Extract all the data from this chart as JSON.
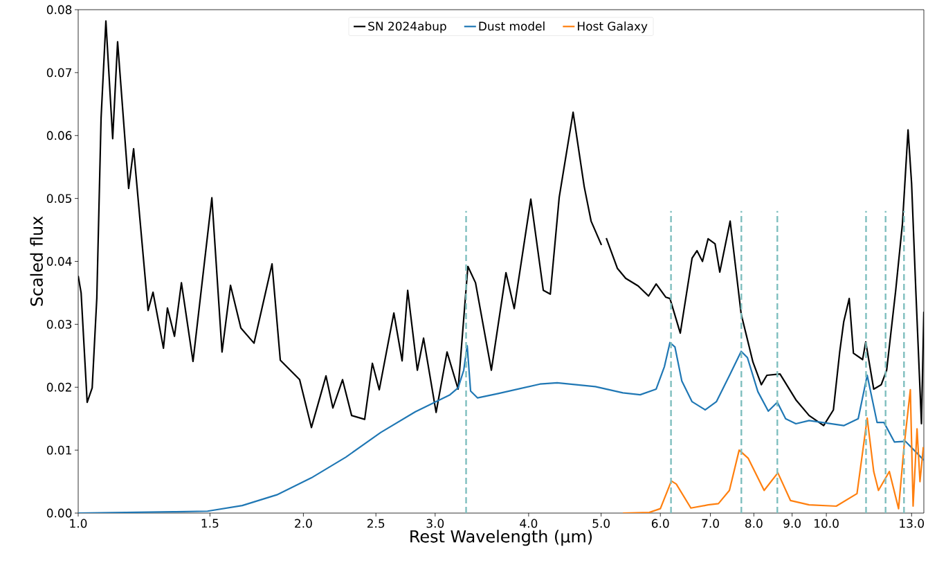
{
  "chart_data": {
    "type": "line",
    "xlabel": "Rest Wavelength (μm)",
    "ylabel": "Scaled flux",
    "log": "x",
    "legend": "top",
    "xlim": [
      1.0,
      13.5
    ],
    "ylim": [
      0.0,
      0.08
    ],
    "xticks": [
      {
        "value": 1.0,
        "label": "1.0"
      },
      {
        "value": 1.5,
        "label": "1.5"
      },
      {
        "value": 2.0,
        "label": "2.0"
      },
      {
        "value": 2.5,
        "label": "2.5"
      },
      {
        "value": 3.0,
        "label": "3.0"
      },
      {
        "value": 4.0,
        "label": "4.0"
      },
      {
        "value": 5.0,
        "label": "5.0"
      },
      {
        "value": 6.0,
        "label": "6.0"
      },
      {
        "value": 7.0,
        "label": "7.0"
      },
      {
        "value": 8.0,
        "label": "8.0"
      },
      {
        "value": 9.0,
        "label": "9.0"
      },
      {
        "value": 10.0,
        "label": "10.0"
      },
      {
        "value": 13.0,
        "label": "13.0"
      }
    ],
    "yticks": [
      {
        "value": 0.0,
        "label": "0.00"
      },
      {
        "value": 0.01,
        "label": "0.01"
      },
      {
        "value": 0.02,
        "label": "0.02"
      },
      {
        "value": 0.03,
        "label": "0.03"
      },
      {
        "value": 0.04,
        "label": "0.04"
      },
      {
        "value": 0.05,
        "label": "0.05"
      },
      {
        "value": 0.06,
        "label": "0.06"
      },
      {
        "value": 0.07,
        "label": "0.07"
      },
      {
        "value": 0.08,
        "label": "0.08"
      }
    ],
    "series": [
      {
        "name": "SN 2024abup",
        "color": "#000000",
        "x": [
          1.0,
          1.009,
          1.028,
          1.044,
          1.059,
          1.073,
          1.089,
          1.112,
          1.129,
          1.168,
          1.186,
          1.24,
          1.259,
          1.3,
          1.316,
          1.345,
          1.374,
          1.424,
          1.509,
          1.557,
          1.598,
          1.65,
          1.718,
          1.816,
          1.863,
          1.977,
          2.05,
          2.144,
          2.19,
          2.256,
          2.32,
          2.415,
          2.473,
          2.526,
          2.642,
          2.71,
          2.757,
          2.84,
          2.895,
          3.009,
          3.112,
          3.22,
          3.318,
          3.397,
          3.567,
          3.731,
          3.827,
          4.027,
          4.185,
          4.276,
          4.395,
          4.587,
          4.746,
          4.848,
          5.005,
          5.04,
          5.08,
          5.256,
          5.393,
          5.604,
          5.786,
          5.923,
          6.103,
          6.18,
          6.38,
          6.616,
          6.716,
          6.831,
          6.95,
          7.1,
          7.205,
          7.438,
          7.695,
          7.98,
          8.187,
          8.328,
          8.671,
          9.106,
          9.484,
          9.917,
          10.22,
          10.42,
          10.55,
          10.73,
          10.87,
          11.18,
          11.29,
          11.57,
          11.84,
          12.04,
          12.38,
          12.64,
          12.86,
          13.0,
          13.17,
          13.4,
          13.5
        ],
        "values": [
          0.0377,
          0.035,
          0.0176,
          0.0199,
          0.0342,
          0.0628,
          0.0782,
          0.0595,
          0.0749,
          0.0516,
          0.0579,
          0.0322,
          0.0351,
          0.0262,
          0.0326,
          0.0281,
          0.0366,
          0.0241,
          0.0501,
          0.0256,
          0.0362,
          0.0294,
          0.027,
          0.0396,
          0.0243,
          0.0212,
          0.0136,
          0.0218,
          0.0167,
          0.0212,
          0.0155,
          0.0149,
          0.0238,
          0.0196,
          0.0318,
          0.0242,
          0.0354,
          0.0227,
          0.0278,
          0.016,
          0.0256,
          0.0197,
          0.0392,
          0.0366,
          0.0227,
          0.0382,
          0.0325,
          0.0499,
          0.0354,
          0.0348,
          0.0502,
          0.0637,
          0.0519,
          0.0464,
          0.0426,
          null,
          0.0437,
          0.0389,
          0.0373,
          0.0361,
          0.0345,
          0.0364,
          0.0343,
          0.0341,
          0.0286,
          0.0405,
          0.0417,
          0.04,
          0.0436,
          0.0428,
          0.0383,
          0.0464,
          0.0316,
          0.024,
          0.0204,
          0.0219,
          0.0221,
          0.018,
          0.0155,
          0.0139,
          0.0164,
          0.0256,
          0.0304,
          0.0341,
          0.0254,
          0.0244,
          0.0272,
          0.0197,
          0.0204,
          0.0227,
          0.0354,
          0.046,
          0.0609,
          0.0524,
          0.0354,
          0.0142,
          0.032
        ]
      },
      {
        "name": "Dust model",
        "color": "#1f77b4",
        "x": [
          1.0,
          1.339,
          1.489,
          1.657,
          1.843,
          2.05,
          2.28,
          2.537,
          2.822,
          3.14,
          3.22,
          3.276,
          3.311,
          3.346,
          3.419,
          3.643,
          4.141,
          4.368,
          4.912,
          5.347,
          5.639,
          5.923,
          6.076,
          6.18,
          6.275,
          6.41,
          6.616,
          6.89,
          7.129,
          7.438,
          7.695,
          7.844,
          8.1,
          8.364,
          8.6,
          8.822,
          9.106,
          9.484,
          10.55,
          11.03,
          11.34,
          11.69,
          11.94,
          12.33,
          12.76,
          13.5
        ],
        "values": [
          0.0,
          0.0002,
          0.0003,
          0.0012,
          0.0029,
          0.0056,
          0.0089,
          0.0128,
          0.0161,
          0.0188,
          0.0199,
          0.0227,
          0.0266,
          0.0194,
          0.0183,
          0.019,
          0.0205,
          0.0207,
          0.0201,
          0.0191,
          0.0188,
          0.0197,
          0.0233,
          0.0271,
          0.0264,
          0.021,
          0.0177,
          0.0164,
          0.0177,
          0.0221,
          0.0257,
          0.0247,
          0.0193,
          0.0162,
          0.0176,
          0.015,
          0.0142,
          0.0147,
          0.0139,
          0.015,
          0.0219,
          0.0144,
          0.0144,
          0.0113,
          0.0114,
          0.0084
        ]
      },
      {
        "name": "Host Galaxy",
        "color": "#ff7f0e",
        "x": [
          5.347,
          5.799,
          6.0,
          6.207,
          6.302,
          6.591,
          6.95,
          7.174,
          7.421,
          7.647,
          7.864,
          8.258,
          8.614,
          8.954,
          9.484,
          10.31,
          10.99,
          11.34,
          11.57,
          11.74,
          12.14,
          12.49,
          12.7,
          12.95,
          13.06,
          13.22,
          13.34,
          13.48
        ],
        "values": [
          0.0,
          0.0001,
          0.0007,
          0.0051,
          0.0046,
          0.0008,
          0.0013,
          0.0015,
          0.0036,
          0.01,
          0.0087,
          0.0036,
          0.0064,
          0.002,
          0.0013,
          0.0011,
          0.0031,
          0.0151,
          0.0066,
          0.0036,
          0.0066,
          0.0007,
          0.0105,
          0.0196,
          0.0011,
          0.0134,
          0.005,
          0.0105
        ]
      },
      {
        "color": "#7fbfbf",
        "line_style": "dashed",
        "x": [
          3.3,
          3.3
        ],
        "values": [
          0.0,
          0.048
        ]
      },
      {
        "color": "#7fbfbf",
        "line_style": "dashed",
        "x": [
          6.2,
          6.2
        ],
        "values": [
          0.0,
          0.048
        ]
      },
      {
        "color": "#7fbfbf",
        "line_style": "dashed",
        "x": [
          7.7,
          7.7
        ],
        "values": [
          0.0,
          0.048
        ]
      },
      {
        "color": "#7fbfbf",
        "line_style": "dashed",
        "x": [
          8.6,
          8.6
        ],
        "values": [
          0.0,
          0.048
        ]
      },
      {
        "color": "#7fbfbf",
        "line_style": "dashed",
        "x": [
          11.3,
          11.3
        ],
        "values": [
          0.0,
          0.048
        ]
      },
      {
        "color": "#7fbfbf",
        "line_style": "dashed",
        "x": [
          12.0,
          12.0
        ],
        "values": [
          0.0,
          0.048
        ]
      },
      {
        "color": "#7fbfbf",
        "line_style": "dashed",
        "x": [
          12.7,
          12.7
        ],
        "values": [
          0.0,
          0.048
        ]
      }
    ]
  }
}
